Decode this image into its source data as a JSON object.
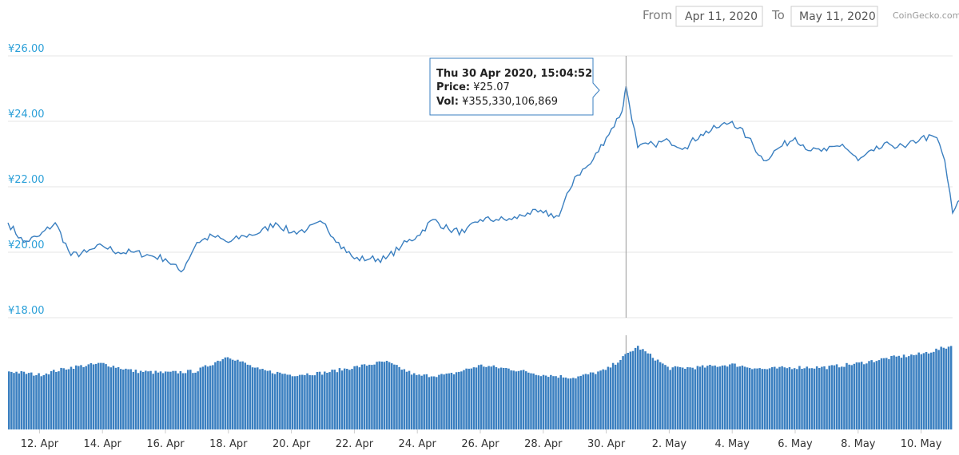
{
  "range": {
    "from_label": "From",
    "from_value": "Apr 11, 2020",
    "to_label": "To",
    "to_value": "May 11, 2020"
  },
  "credit": "CoinGecko.com",
  "colors": {
    "line": "#3a7fc0",
    "volume": "#3a7fc0",
    "axis_text": "#2a9fd8",
    "grid": "#e6e6e6"
  },
  "tooltip": {
    "date": "Thu 30 Apr 2020, 15:04:52",
    "price_label": "Price:",
    "price_value": "¥25.07",
    "vol_label": "Vol:",
    "vol_value": "¥355,330,106,869"
  },
  "chart_data": {
    "type": "line",
    "x_start": "2020-04-11",
    "x_end": "2020-05-11",
    "x_ticks": [
      "12. Apr",
      "14. Apr",
      "16. Apr",
      "18. Apr",
      "20. Apr",
      "22. Apr",
      "24. Apr",
      "26. Apr",
      "28. Apr",
      "30. Apr",
      "2. May",
      "4. May",
      "6. May",
      "8. May",
      "10. May"
    ],
    "y_ticks": [
      "¥18.00",
      "¥20.00",
      "¥22.00",
      "¥24.00",
      "¥26.00"
    ],
    "ylim": [
      18,
      26
    ],
    "grid": true,
    "highlight": {
      "x": "2020-04-30T15:04:52",
      "y": 25.07
    },
    "price_series": {
      "x": [
        "2020-04-11",
        "2020-04-11T12:00",
        "2020-04-12",
        "2020-04-12T12:00",
        "2020-04-13",
        "2020-04-13T12:00",
        "2020-04-14",
        "2020-04-14T12:00",
        "2020-04-15",
        "2020-04-15T12:00",
        "2020-04-16",
        "2020-04-16T12:00",
        "2020-04-17",
        "2020-04-17T12:00",
        "2020-04-18",
        "2020-04-18T12:00",
        "2020-04-19",
        "2020-04-19T12:00",
        "2020-04-20",
        "2020-04-20T12:00",
        "2020-04-21",
        "2020-04-21T12:00",
        "2020-04-22",
        "2020-04-22T12:00",
        "2020-04-23",
        "2020-04-23T12:00",
        "2020-04-24",
        "2020-04-24T12:00",
        "2020-04-25",
        "2020-04-25T12:00",
        "2020-04-26",
        "2020-04-26T12:00",
        "2020-04-27",
        "2020-04-27T12:00",
        "2020-04-28",
        "2020-04-28T12:00",
        "2020-04-29",
        "2020-04-29T12:00",
        "2020-04-30",
        "2020-04-30T12:00",
        "2020-04-30T15:04:52",
        "2020-05-01",
        "2020-05-01T12:00",
        "2020-05-02",
        "2020-05-02T12:00",
        "2020-05-03",
        "2020-05-03T12:00",
        "2020-05-04",
        "2020-05-04T12:00",
        "2020-05-05",
        "2020-05-05T12:00",
        "2020-05-06",
        "2020-05-06T12:00",
        "2020-05-07",
        "2020-05-07T12:00",
        "2020-05-08",
        "2020-05-08T12:00",
        "2020-05-09",
        "2020-05-09T12:00",
        "2020-05-10",
        "2020-05-10T12:00",
        "2020-05-10T18:00",
        "2020-05-11",
        "2020-05-11T06:00",
        "2020-05-11T12:00"
      ],
      "y": [
        20.9,
        20.3,
        20.5,
        20.9,
        19.9,
        20.0,
        20.2,
        20.0,
        20.0,
        19.9,
        19.8,
        19.4,
        20.3,
        20.5,
        20.3,
        20.5,
        20.6,
        20.9,
        20.6,
        20.7,
        20.9,
        20.3,
        19.8,
        19.8,
        19.8,
        20.2,
        20.5,
        21.0,
        20.7,
        20.6,
        21.0,
        21.0,
        21.0,
        21.2,
        21.2,
        21.1,
        22.3,
        22.7,
        23.5,
        24.3,
        25.07,
        23.2,
        23.3,
        23.4,
        23.2,
        23.6,
        23.8,
        24.0,
        23.5,
        22.8,
        23.2,
        23.5,
        23.1,
        23.1,
        23.3,
        22.8,
        23.1,
        23.3,
        23.2,
        23.5,
        23.5,
        22.8,
        21.2,
        21.6,
        21.0
      ]
    },
    "volume_series": {
      "x": [
        "2020-04-11",
        "2020-04-12",
        "2020-04-13",
        "2020-04-14",
        "2020-04-15",
        "2020-04-16",
        "2020-04-17",
        "2020-04-18",
        "2020-04-19",
        "2020-04-20",
        "2020-04-21",
        "2020-04-22",
        "2020-04-23",
        "2020-04-24",
        "2020-04-25",
        "2020-04-26",
        "2020-04-27",
        "2020-04-28",
        "2020-04-29",
        "2020-04-30",
        "2020-05-01",
        "2020-05-02",
        "2020-05-03",
        "2020-05-04",
        "2020-05-05",
        "2020-05-06",
        "2020-05-07",
        "2020-05-08",
        "2020-05-09",
        "2020-05-10",
        "2020-05-11"
      ],
      "y": [
        0.62,
        0.58,
        0.66,
        0.7,
        0.62,
        0.6,
        0.62,
        0.78,
        0.63,
        0.58,
        0.6,
        0.66,
        0.72,
        0.57,
        0.58,
        0.68,
        0.64,
        0.58,
        0.55,
        0.63,
        0.88,
        0.65,
        0.66,
        0.69,
        0.64,
        0.66,
        0.66,
        0.7,
        0.76,
        0.8,
        0.89
      ]
    }
  }
}
